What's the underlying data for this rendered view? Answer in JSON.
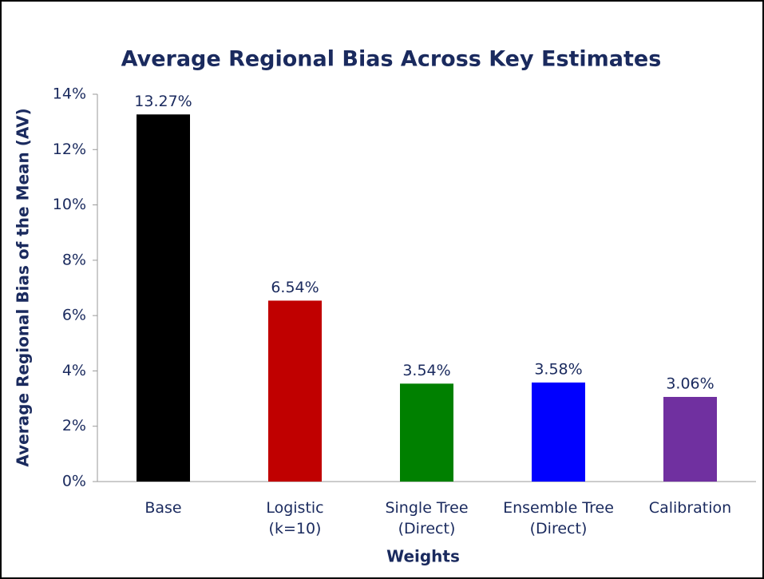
{
  "chart_data": {
    "type": "bar",
    "title": "Average Regional Bias Across Key Estimates",
    "y_label": "Average Regional Bias of the Mean (AV)",
    "x_label": "Weights",
    "categories": [
      [
        "Base"
      ],
      [
        "Logistic",
        "(k=10)"
      ],
      [
        "Single Tree",
        "(Direct)"
      ],
      [
        "Ensemble Tree",
        "(Direct)"
      ],
      [
        "Calibration"
      ]
    ],
    "values": [
      13.27,
      6.54,
      3.54,
      3.58,
      3.06
    ],
    "value_labels": [
      "13.27%",
      "6.54%",
      "3.54%",
      "3.58%",
      "3.06%"
    ],
    "colors": [
      "#000000",
      "#c00000",
      "#008000",
      "#0000ff",
      "#7030a0"
    ],
    "ylim": [
      0,
      14
    ],
    "yticks": [
      {
        "value": 0,
        "label": "0%"
      },
      {
        "value": 2,
        "label": "2%"
      },
      {
        "value": 4,
        "label": "4%"
      },
      {
        "value": 6,
        "label": "6%"
      },
      {
        "value": 8,
        "label": "8%"
      },
      {
        "value": 10,
        "label": "10%"
      },
      {
        "value": 12,
        "label": "12%"
      },
      {
        "value": 14,
        "label": "14%"
      }
    ]
  }
}
